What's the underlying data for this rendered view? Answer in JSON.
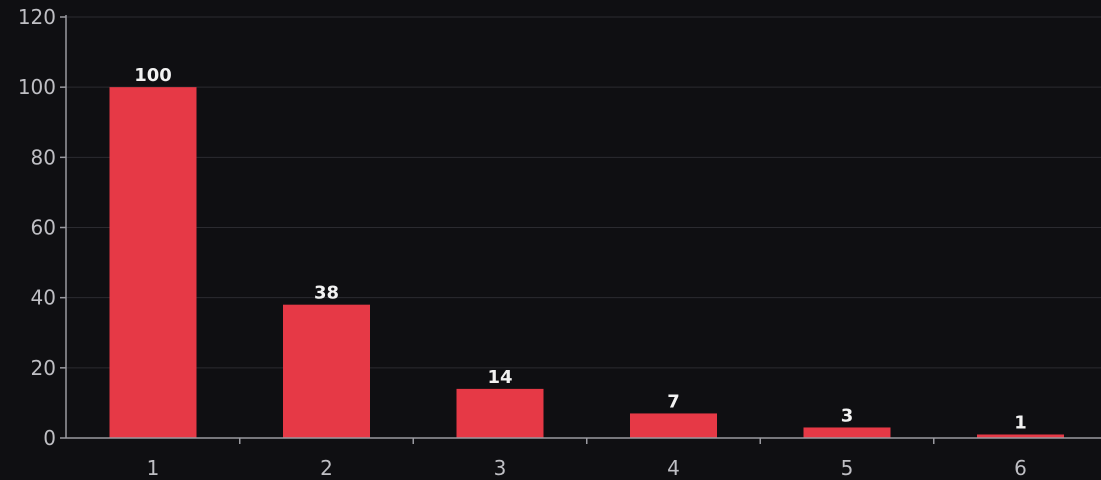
{
  "chart_data": {
    "type": "bar",
    "title": "",
    "xlabel": "",
    "ylabel": "",
    "categories": [
      "1",
      "2",
      "3",
      "4",
      "5",
      "6"
    ],
    "values": [
      100,
      38,
      14,
      7,
      3,
      1
    ],
    "data_labels": [
      "100",
      "38",
      "14",
      "7",
      "3",
      "1"
    ],
    "ylim": [
      0,
      120
    ],
    "yticks": [
      0,
      20,
      40,
      60,
      80,
      100,
      120
    ],
    "ytick_labels": [
      "0",
      "20",
      "40",
      "60",
      "80",
      "100",
      "120"
    ],
    "grid": true,
    "legend": "none",
    "colors": {
      "bar": "#e63946",
      "background": "#0f0f12",
      "grid": "#2b2b30",
      "axis": "#9a9aa0",
      "tick_label": "#bfbfc4",
      "data_label": "#f2f2f2"
    }
  }
}
